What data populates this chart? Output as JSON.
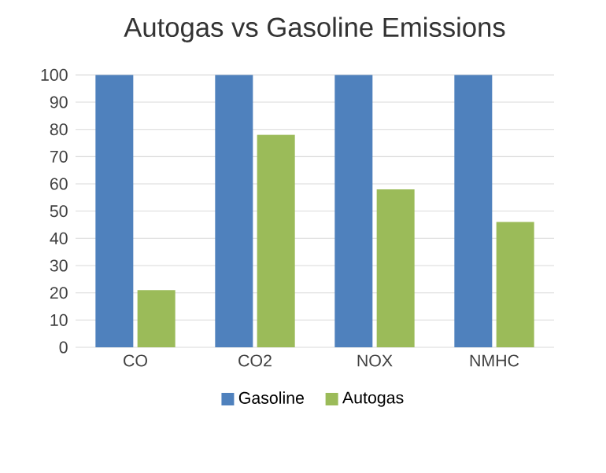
{
  "chart_data": {
    "type": "bar",
    "title": "Autogas vs Gasoline Emissions",
    "categories": [
      "CO",
      "CO2",
      "NOX",
      "NMHC"
    ],
    "series": [
      {
        "name": "Gasoline",
        "color": "#4f81bd",
        "values": [
          100,
          100,
          100,
          100
        ]
      },
      {
        "name": "Autogas",
        "color": "#9bbb59",
        "values": [
          21,
          78,
          58,
          46
        ]
      }
    ],
    "ylim": [
      0,
      100
    ],
    "yticks": [
      0,
      10,
      20,
      30,
      40,
      50,
      60,
      70,
      80,
      90,
      100
    ],
    "grid": "y",
    "legend": "bottom"
  }
}
